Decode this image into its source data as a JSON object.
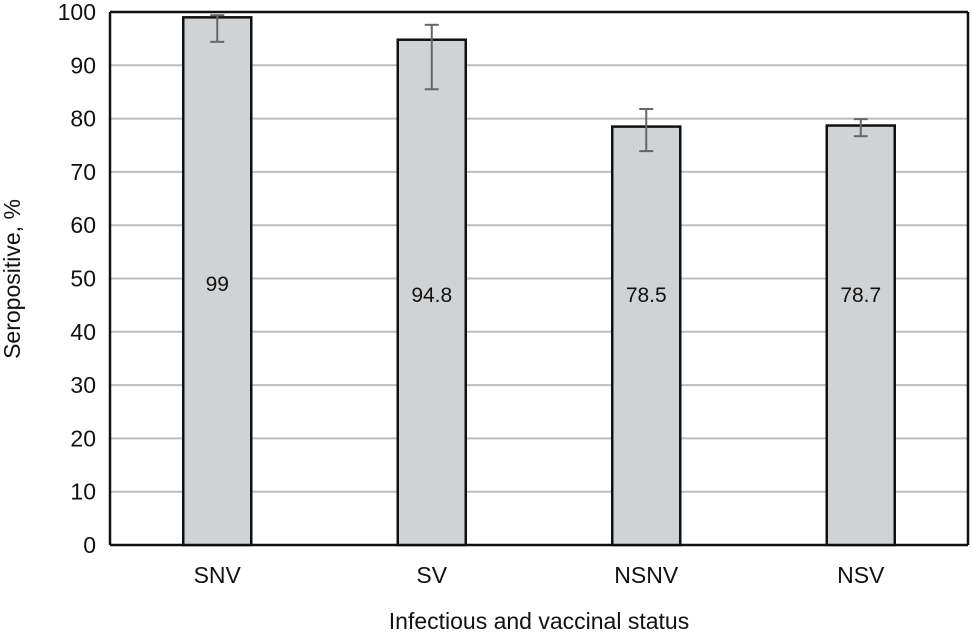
{
  "chart_data": {
    "type": "bar",
    "title": "",
    "xlabel": "Infectious and vaccinal status",
    "ylabel": "Seropositive, %",
    "ylim": [
      0,
      100
    ],
    "yticks": [
      0,
      10,
      20,
      30,
      40,
      50,
      60,
      70,
      80,
      90,
      100
    ],
    "grid": true,
    "categories": [
      "SNV",
      "SV",
      "NSNV",
      "NSV"
    ],
    "values": [
      99,
      94.8,
      78.5,
      78.7
    ],
    "data_labels": [
      "99",
      "94.8",
      "78.5",
      "78.7"
    ],
    "error_low": [
      94.4,
      85.5,
      73.9,
      76.7
    ],
    "error_high": [
      99.4,
      97.6,
      81.8,
      79.9
    ],
    "colors": {
      "bar": "#d1d2d4",
      "bar_edge": "#111111",
      "grid": "#bdbdbd",
      "error": "#666666"
    }
  }
}
